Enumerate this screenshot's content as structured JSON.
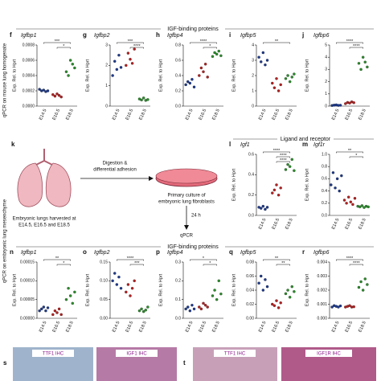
{
  "side_labels": [
    "qPCR on mouse lung homogenate",
    "qPCR on embryonic lung mesenchyme"
  ],
  "sections": [
    "IGF-binding proteins",
    "Ligand and receptor",
    "IGF-binding proteins"
  ],
  "diagram": {
    "letter": "k",
    "step1": "Digestion &",
    "step1b": "differential adhesion",
    "culture1": "Primary culture of",
    "culture2": "embryonic lung fibroblasts",
    "time": "24 h",
    "assay": "qPCR",
    "harvest1": "Embryonic lungs harvested at",
    "harvest2": "E14.5, E16.5 and E18.5"
  },
  "ihc": [
    {
      "letter": "s",
      "left": "TTF1 IHC",
      "right": "IGF1 IHC"
    },
    {
      "letter": "t",
      "left": "TTF1 IHC",
      "right": "IGF1R IHC"
    }
  ],
  "chart_data": [
    {
      "type": "dot",
      "panel": "f",
      "title": "Igfbp1",
      "ylabel": "Exp. Rel. to Hprt",
      "categories": [
        "E14.5",
        "E16.5",
        "E18.5"
      ],
      "colors": [
        "#1f3a8a",
        "#b22222",
        "#2e8b2e"
      ],
      "values": [
        [
          0.00022,
          0.0002,
          0.00021,
          0.00019,
          0.0002
        ],
        [
          0.00015,
          0.00013,
          0.00016,
          0.00014,
          0.00012
        ],
        [
          0.00045,
          0.0004,
          0.0006,
          0.00055,
          0.0005
        ]
      ],
      "ylim": [
        0,
        0.0008
      ],
      "yticks": [
        {
          "value": 0,
          "label": "0.0000"
        },
        {
          "value": 0.0002,
          "label": "0.0002"
        },
        {
          "value": 0.0004,
          "label": "0.0004"
        },
        {
          "value": 0.0006,
          "label": "0.0006"
        },
        {
          "value": 0.0008,
          "label": "0.0008"
        }
      ],
      "annotations": [
        "***",
        "*"
      ]
    },
    {
      "type": "dot",
      "panel": "g",
      "title": "Igfbp2",
      "ylabel": "Exp. Rel. to Hprt",
      "categories": [
        "E14.5",
        "E16.5",
        "E18.5"
      ],
      "colors": [
        "#1f3a8a",
        "#b22222",
        "#2e8b2e"
      ],
      "values": [
        [
          1.5,
          2.2,
          1.8,
          2.5,
          1.9
        ],
        [
          2.0,
          2.6,
          2.3,
          2.1,
          2.8
        ],
        [
          0.35,
          0.3,
          0.4,
          0.28,
          0.32
        ]
      ],
      "ylim": [
        0,
        3
      ],
      "yticks": [
        0,
        1,
        2,
        3
      ],
      "annotations": [
        "***",
        "****"
      ]
    },
    {
      "type": "dot",
      "panel": "h",
      "title": "Igfbp4",
      "ylabel": "Exp. Rel. to Hprt",
      "categories": [
        "E14.5",
        "E16.5",
        "E18.5"
      ],
      "colors": [
        "#1f3a8a",
        "#b22222",
        "#2e8b2e"
      ],
      "values": [
        [
          0.28,
          0.32,
          0.3,
          0.35,
          0.25
        ],
        [
          0.4,
          0.5,
          0.45,
          0.55,
          0.38
        ],
        [
          0.65,
          0.7,
          0.68,
          0.72,
          0.66
        ]
      ],
      "ylim": [
        0,
        0.8
      ],
      "yticks": [
        {
          "value": 0,
          "label": "0.0"
        },
        0.2,
        0.4,
        0.6,
        0.8
      ],
      "annotations": [
        "****",
        "*"
      ]
    },
    {
      "type": "dot",
      "panel": "i",
      "title": "Igfbp5",
      "ylabel": "Exp. Rel. to Hprt",
      "categories": [
        "E14.5",
        "E16.5",
        "E18.5"
      ],
      "colors": [
        "#1f3a8a",
        "#b22222",
        "#2e8b2e"
      ],
      "values": [
        [
          3.2,
          2.9,
          3.5,
          2.7,
          3.0
        ],
        [
          1.5,
          1.2,
          1.8,
          1.0,
          1.4
        ],
        [
          1.8,
          2.0,
          1.6,
          1.9,
          2.1
        ]
      ],
      "ylim": [
        0,
        4
      ],
      "yticks": [
        0,
        1,
        2,
        3,
        4
      ],
      "annotations": [
        "**"
      ]
    },
    {
      "type": "dot",
      "panel": "j",
      "title": "Igfbp6",
      "ylabel": "Exp. Rel. to Hprt",
      "categories": [
        "E14.5",
        "E16.5",
        "E18.5"
      ],
      "colors": [
        "#1f3a8a",
        "#b22222",
        "#2e8b2e"
      ],
      "values": [
        [
          0.05,
          0.08,
          0.1,
          0.06,
          0.07
        ],
        [
          0.2,
          0.3,
          0.25,
          0.35,
          0.28
        ],
        [
          3.5,
          3.0,
          4.0,
          3.6,
          3.2
        ]
      ],
      "ylim": [
        0,
        5
      ],
      "yticks": [
        0,
        1,
        2,
        3,
        4,
        5
      ],
      "annotations": [
        "****",
        "****"
      ]
    },
    {
      "type": "dot",
      "panel": "l",
      "title": "Igf1",
      "ylabel": "Exp. Rel. to Hprt",
      "categories": [
        "E14.5",
        "E16.5",
        "E18.5"
      ],
      "colors": [
        "#1f3a8a",
        "#b22222",
        "#2e8b2e"
      ],
      "values": [
        [
          0.08,
          0.07,
          0.09,
          0.06,
          0.08
        ],
        [
          0.22,
          0.25,
          0.3,
          0.2,
          0.27
        ],
        [
          0.45,
          0.5,
          0.48,
          0.55,
          0.44
        ]
      ],
      "ylim": [
        0,
        0.6
      ],
      "yticks": [
        {
          "value": 0,
          "label": "0.0"
        },
        0.2,
        0.4,
        0.6
      ],
      "annotations": [
        "****",
        "****",
        "****"
      ]
    },
    {
      "type": "dot",
      "panel": "m",
      "title": "Igf1r",
      "ylabel": "Exp. Rel. to Hprt",
      "categories": [
        "E14.5",
        "E16.5",
        "E18.5"
      ],
      "colors": [
        "#1f3a8a",
        "#b22222",
        "#2e8b2e"
      ],
      "values": [
        [
          0.5,
          0.7,
          0.45,
          0.6,
          0.4,
          0.65
        ],
        [
          0.25,
          0.2,
          0.3,
          0.22,
          0.18,
          0.28
        ],
        [
          0.15,
          0.14,
          0.16,
          0.13,
          0.15,
          0.14
        ]
      ],
      "ylim": [
        0,
        1
      ],
      "yticks": [
        {
          "value": 0,
          "label": "0.0"
        },
        0.2,
        0.4,
        0.6,
        0.8,
        {
          "value": 1,
          "label": "1.0"
        }
      ],
      "annotations": [
        "**",
        "*"
      ]
    },
    {
      "type": "dot",
      "panel": "n",
      "title": "Igfbp1",
      "ylabel": "Exp. Rel. to Hprt",
      "categories": [
        "E14.5",
        "E16.5",
        "E18.5"
      ],
      "colors": [
        "#1f3a8a",
        "#b22222",
        "#2e8b2e"
      ],
      "values": [
        [
          2e-05,
          2.5e-05,
          3e-05,
          2e-05,
          2.8e-05
        ],
        [
          1e-05,
          2e-05,
          1.5e-05,
          2.5e-05,
          1e-05
        ],
        [
          5e-05,
          8e-05,
          6e-05,
          4e-05,
          7e-05
        ]
      ],
      "ylim": [
        0,
        0.00015
      ],
      "yticks": [
        {
          "value": 0,
          "label": "0.00000"
        },
        {
          "value": 5e-05,
          "label": "0.00005"
        },
        {
          "value": 0.0001,
          "label": "0.00010"
        },
        {
          "value": 0.00015,
          "label": "0.00015"
        }
      ],
      "annotations": [
        "**",
        "*"
      ]
    },
    {
      "type": "dot",
      "panel": "o",
      "title": "Igfbp2",
      "ylabel": "Exp. Rel. to Hprt",
      "categories": [
        "E14.5",
        "E16.5",
        "E18.5"
      ],
      "colors": [
        "#1f3a8a",
        "#b22222",
        "#2e8b2e"
      ],
      "values": [
        [
          0.1,
          0.12,
          0.09,
          0.11,
          0.08
        ],
        [
          0.07,
          0.09,
          0.06,
          0.08,
          0.1
        ],
        [
          0.02,
          0.025,
          0.018,
          0.022,
          0.03
        ]
      ],
      "ylim": [
        0,
        0.15
      ],
      "yticks": [
        {
          "value": 0,
          "label": "0.00"
        },
        0.05,
        {
          "value": 0.1,
          "label": "0.10"
        },
        0.15
      ],
      "annotations": [
        "****",
        "***"
      ]
    },
    {
      "type": "dot",
      "panel": "p",
      "title": "Igfbp4",
      "ylabel": "Exp. Rel. to Hprt",
      "categories": [
        "E14.5",
        "E16.5",
        "E18.5"
      ],
      "colors": [
        "#1f3a8a",
        "#b22222",
        "#2e8b2e"
      ],
      "values": [
        [
          0.05,
          0.06,
          0.04,
          0.07,
          0.05
        ],
        [
          0.06,
          0.05,
          0.08,
          0.07,
          0.06
        ],
        [
          0.12,
          0.15,
          0.1,
          0.2,
          0.13
        ]
      ],
      "ylim": [
        0,
        0.3
      ],
      "yticks": [
        {
          "value": 0,
          "label": "0.0"
        },
        0.1,
        0.2,
        0.3
      ],
      "annotations": [
        "*",
        "*"
      ]
    },
    {
      "type": "dot",
      "panel": "q",
      "title": "Igfbp5",
      "ylabel": "Exp. Rel. to Hprt",
      "categories": [
        "E14.5",
        "E16.5",
        "E18.5"
      ],
      "colors": [
        "#1f3a8a",
        "#b22222",
        "#2e8b2e"
      ],
      "values": [
        [
          0.05,
          0.06,
          0.04,
          0.055,
          0.045
        ],
        [
          0.02,
          0.018,
          0.025,
          0.015,
          0.022
        ],
        [
          0.035,
          0.04,
          0.03,
          0.045,
          0.038
        ]
      ],
      "ylim": [
        0,
        0.08
      ],
      "yticks": [
        {
          "value": 0,
          "label": "0.00"
        },
        0.02,
        0.04,
        0.06,
        0.08
      ],
      "annotations": [
        "**",
        "**"
      ]
    },
    {
      "type": "dot",
      "panel": "r",
      "title": "Igfbp6",
      "ylabel": "Exp. Rel. to Hprt",
      "categories": [
        "E14.5",
        "E16.5",
        "E18.5"
      ],
      "colors": [
        "#1f3a8a",
        "#b22222",
        "#2e8b2e"
      ],
      "values": [
        [
          0.0008,
          0.0009,
          0.00085,
          0.0008,
          0.00088
        ],
        [
          0.0008,
          0.00085,
          0.0009,
          0.0008,
          0.00082
        ],
        [
          0.0022,
          0.0026,
          0.002,
          0.0028,
          0.0024
        ]
      ],
      "ylim": [
        0,
        0.004
      ],
      "yticks": [
        {
          "value": 0,
          "label": "0.000"
        },
        0.001,
        0.002,
        0.003,
        0.004
      ],
      "annotations": [
        "****",
        "****"
      ]
    }
  ]
}
